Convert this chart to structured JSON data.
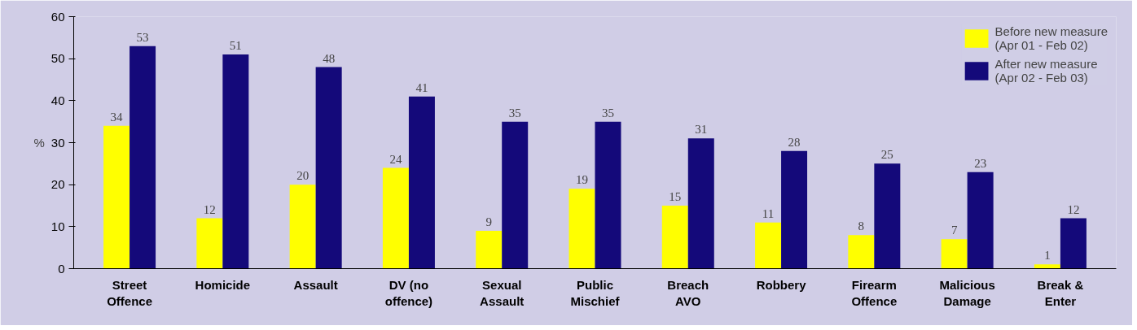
{
  "chart_data": {
    "type": "bar",
    "ylabel": "%",
    "categories": [
      "Street\nOffence",
      "Homicide",
      "Assault",
      "DV (no\noffence)",
      "Sexual\nAssault",
      "Public\nMischief",
      "Breach\nAVO",
      "Robbery",
      "Firearm\nOffence",
      "Malicious\nDamage",
      "Break &\nEnter"
    ],
    "series": [
      {
        "name": "Before new measure\n(Apr 01 - Feb 02)",
        "color": "#ffff00",
        "values": [
          34,
          12,
          20,
          24,
          9,
          19,
          15,
          11,
          8,
          7,
          1
        ]
      },
      {
        "name": "After new measure\n(Apr 02 - Feb 03)",
        "color": "#14097a",
        "values": [
          53,
          51,
          48,
          41,
          35,
          35,
          31,
          28,
          25,
          23,
          12
        ]
      }
    ],
    "ylim": [
      0,
      60
    ],
    "yticks": [
      0,
      10,
      20,
      30,
      40,
      50,
      60
    ],
    "grid": false,
    "legend": "top right",
    "data_labels": true
  }
}
